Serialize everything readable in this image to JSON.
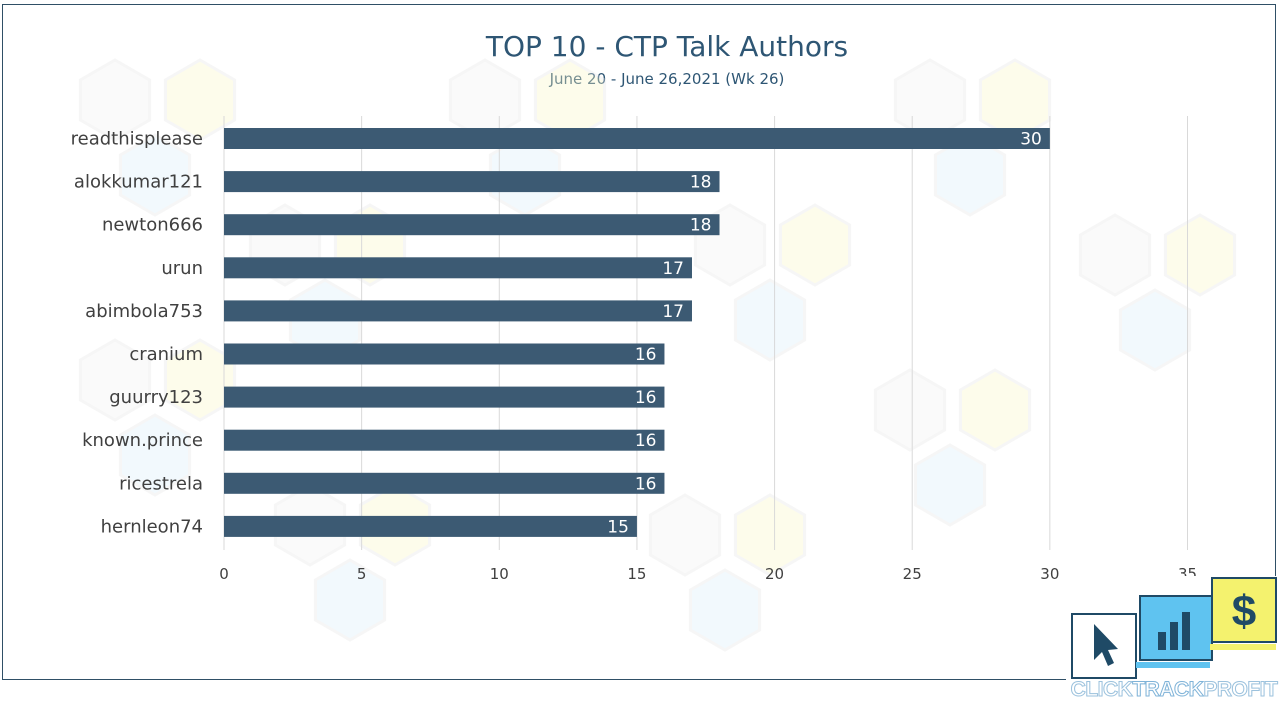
{
  "brand": {
    "name": "CLICKTRACKPROFIT",
    "name_parts": [
      "CLICK",
      "TRACK",
      "PROFIT"
    ],
    "icons": [
      "cursor-icon",
      "bar-chart-icon",
      "dollar-icon"
    ],
    "colors": {
      "yellow": "#f4f26e",
      "blue": "#5fc3f0",
      "navy": "#1f4a66"
    }
  },
  "chart_data": {
    "type": "bar",
    "orientation": "horizontal",
    "title": "TOP 10 - CTP Talk Authors",
    "subtitle": "June 20 - June 26,2021 (Wk 26)",
    "categories": [
      "readthisplease",
      "alokkumar121",
      "newton666",
      "urun",
      "abimbola753",
      "cranium",
      "guurry123",
      "known.prince",
      "ricestrela",
      "hernleon74"
    ],
    "values": [
      30,
      18,
      18,
      17,
      17,
      16,
      16,
      16,
      16,
      15
    ],
    "data_labels": [
      "30",
      "18",
      "18",
      "17",
      "17",
      "16",
      "16",
      "16",
      "16",
      "15"
    ],
    "xlim": [
      0,
      35
    ],
    "xticks": [
      0,
      5,
      10,
      15,
      20,
      25,
      30,
      35
    ],
    "xtick_labels": [
      "0",
      "5",
      "10",
      "15",
      "20",
      "25",
      "30",
      "35"
    ],
    "grid": "vertical",
    "legend": "none",
    "bar_color": "#3c5a73",
    "label_color": "#ffffff",
    "axis_text_color": "#404040"
  }
}
